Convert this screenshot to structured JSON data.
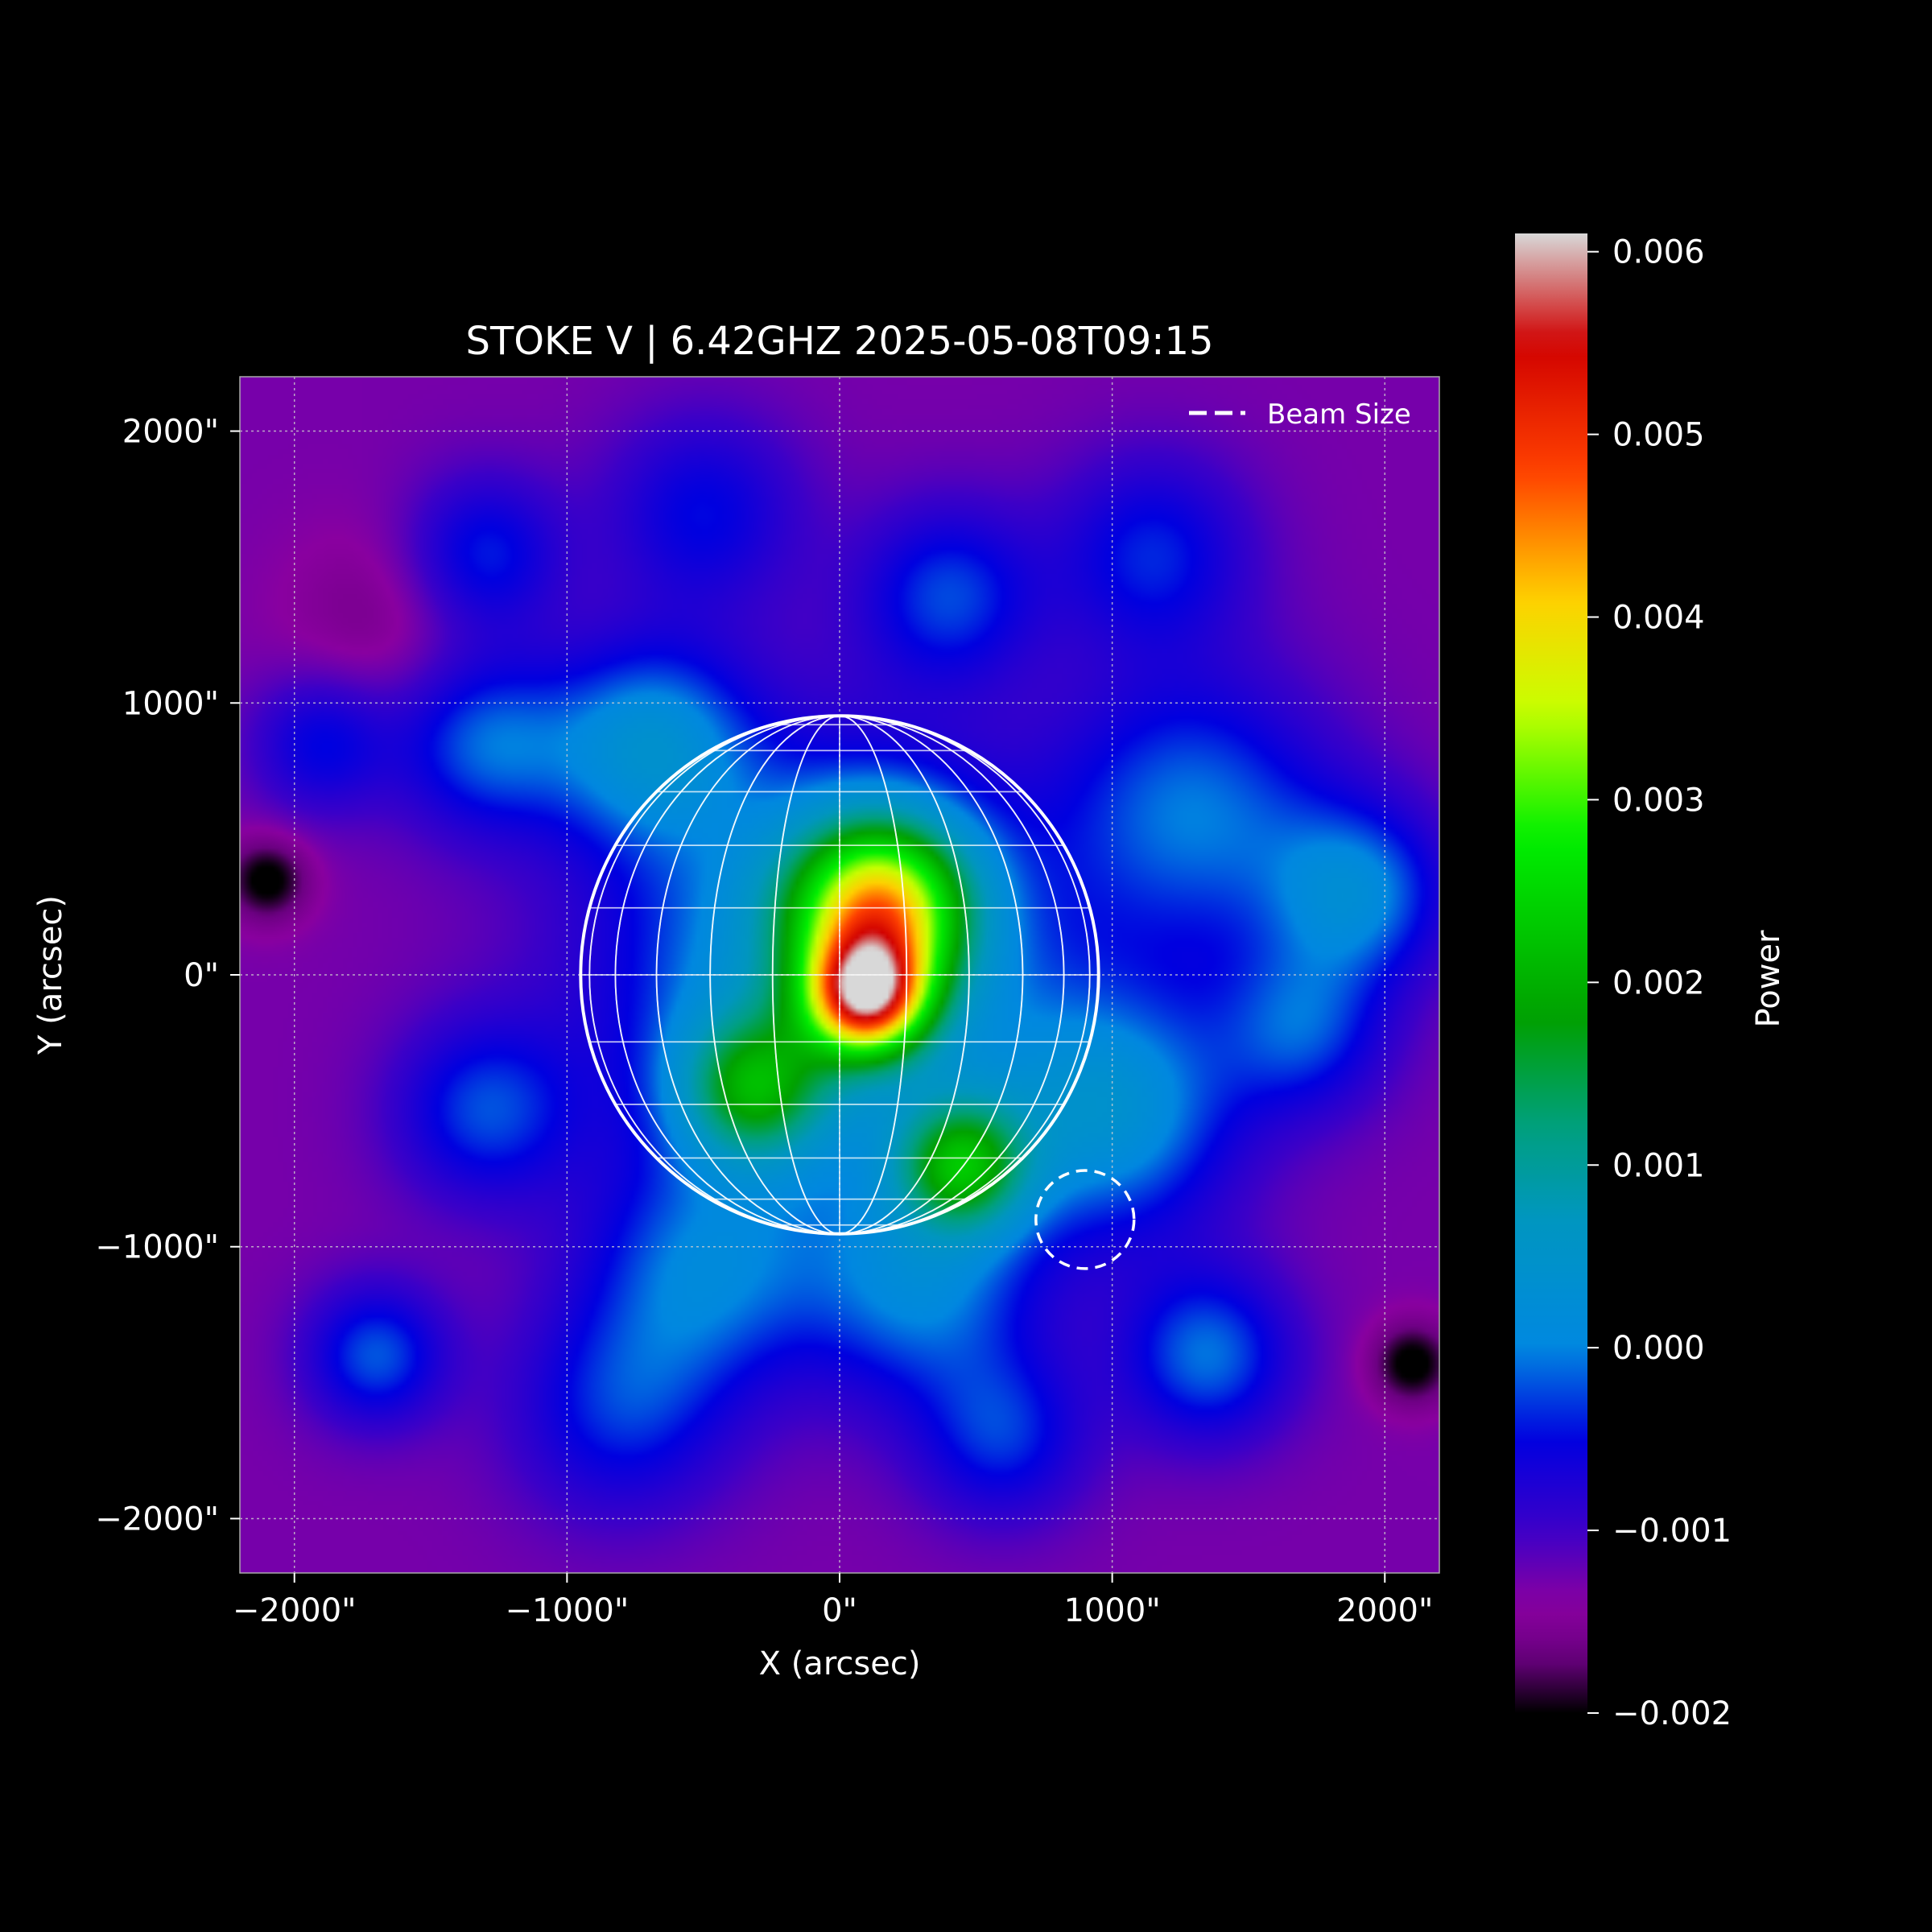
{
  "chart_data": {
    "type": "heatmap",
    "title": "STOKE V | 6.42GHZ 2025-05-08T09:15",
    "xlabel": "X (arcsec)",
    "ylabel": "Y (arcsec)",
    "xlim": [
      -2200,
      2200
    ],
    "ylim": [
      -2200,
      2200
    ],
    "x_ticks": [
      {
        "value": -2000,
        "label": "−2000\""
      },
      {
        "value": -1000,
        "label": "−1000\""
      },
      {
        "value": 0,
        "label": "0\""
      },
      {
        "value": 1000,
        "label": "1000\""
      },
      {
        "value": 2000,
        "label": "2000\""
      }
    ],
    "y_ticks": [
      {
        "value": 2000,
        "label": "2000\""
      },
      {
        "value": 1000,
        "label": "1000\""
      },
      {
        "value": 0,
        "label": "0\""
      },
      {
        "value": -1000,
        "label": "−1000\""
      },
      {
        "value": -2000,
        "label": "−2000\""
      }
    ],
    "grid": true,
    "legend": {
      "placement": "top-right",
      "entries": [
        {
          "label": "Beam Size",
          "style": "dashed",
          "color": "#ffffff"
        }
      ]
    },
    "colorbar": {
      "label": "Power",
      "range": [
        -0.002,
        0.0061
      ],
      "ticks": [
        {
          "value": 0.006,
          "label": "0.006"
        },
        {
          "value": 0.005,
          "label": "0.005"
        },
        {
          "value": 0.004,
          "label": "0.004"
        },
        {
          "value": 0.003,
          "label": "0.003"
        },
        {
          "value": 0.002,
          "label": "0.002"
        },
        {
          "value": 0.001,
          "label": "0.001"
        },
        {
          "value": 0.0,
          "label": "0.000"
        },
        {
          "value": -0.001,
          "label": "−0.001"
        },
        {
          "value": -0.002,
          "label": "−0.002"
        }
      ],
      "colormap": [
        {
          "v": -0.002,
          "c": "#000000"
        },
        {
          "v": -0.0017,
          "c": "#6a0080"
        },
        {
          "v": -0.0014,
          "c": "#8a00a0"
        },
        {
          "v": -0.001,
          "c": "#3c00c8"
        },
        {
          "v": -0.0005,
          "c": "#0000e0"
        },
        {
          "v": 0.0,
          "c": "#0088e0"
        },
        {
          "v": 0.0007,
          "c": "#0096c0"
        },
        {
          "v": 0.0012,
          "c": "#00a080"
        },
        {
          "v": 0.0018,
          "c": "#00a000"
        },
        {
          "v": 0.0028,
          "c": "#00f000"
        },
        {
          "v": 0.0035,
          "c": "#c8ff00"
        },
        {
          "v": 0.0041,
          "c": "#ffd000"
        },
        {
          "v": 0.0048,
          "c": "#ff4000"
        },
        {
          "v": 0.0055,
          "c": "#d00000"
        },
        {
          "v": 0.0061,
          "c": "#d8d8d8"
        }
      ]
    },
    "base_level": -0.0013,
    "field_sources": [
      {
        "x": 100,
        "y": -80,
        "amp": 0.0048,
        "sigma": 150
      },
      {
        "x": 150,
        "y": 250,
        "amp": 0.0042,
        "sigma": 230
      },
      {
        "x": -320,
        "y": -420,
        "amp": 0.0022,
        "sigma": 190
      },
      {
        "x": 450,
        "y": -700,
        "amp": 0.0025,
        "sigma": 170
      },
      {
        "x": -50,
        "y": 0,
        "amp": 0.0018,
        "sigma": 550
      },
      {
        "x": -700,
        "y": 850,
        "amp": 0.0014,
        "sigma": 260
      },
      {
        "x": 1300,
        "y": 600,
        "amp": 0.0012,
        "sigma": 350
      },
      {
        "x": -1300,
        "y": 850,
        "amp": 0.0011,
        "sigma": 230
      },
      {
        "x": -1300,
        "y": -500,
        "amp": 0.001,
        "sigma": 230
      },
      {
        "x": 1000,
        "y": -500,
        "amp": 0.0015,
        "sigma": 320
      },
      {
        "x": -500,
        "y": -1100,
        "amp": 0.0011,
        "sigma": 300
      },
      {
        "x": 300,
        "y": -1150,
        "amp": 0.0012,
        "sigma": 300
      },
      {
        "x": -1700,
        "y": -1400,
        "amp": 0.0011,
        "sigma": 180
      },
      {
        "x": 1350,
        "y": -1400,
        "amp": 0.0012,
        "sigma": 220
      },
      {
        "x": 1900,
        "y": 300,
        "amp": 0.0013,
        "sigma": 230
      },
      {
        "x": -1300,
        "y": 1550,
        "amp": 0.0009,
        "sigma": 200
      },
      {
        "x": 400,
        "y": 1400,
        "amp": 0.001,
        "sigma": 230
      },
      {
        "x": 1150,
        "y": 1550,
        "amp": 0.0009,
        "sigma": 250
      },
      {
        "x": -800,
        "y": -1600,
        "amp": 0.0009,
        "sigma": 280
      },
      {
        "x": 600,
        "y": -1700,
        "amp": 0.0009,
        "sigma": 220
      },
      {
        "x": 1700,
        "y": -200,
        "amp": 0.001,
        "sigma": 220
      },
      {
        "x": -1900,
        "y": 850,
        "amp": 0.0008,
        "sigma": 180
      },
      {
        "x": -500,
        "y": 1700,
        "amp": 0.0008,
        "sigma": 250
      },
      {
        "x": -2100,
        "y": 350,
        "amp": -0.0008,
        "sigma": 110
      },
      {
        "x": 2100,
        "y": -1430,
        "amp": -0.0008,
        "sigma": 110
      },
      {
        "x": -1700,
        "y": 1300,
        "amp": -0.0003,
        "sigma": 250
      }
    ],
    "solar_disk": {
      "center": [
        0,
        0
      ],
      "radius": 950,
      "grid_step_deg": 15
    },
    "beam": {
      "center": [
        900,
        -900
      ],
      "radius": 180
    }
  }
}
